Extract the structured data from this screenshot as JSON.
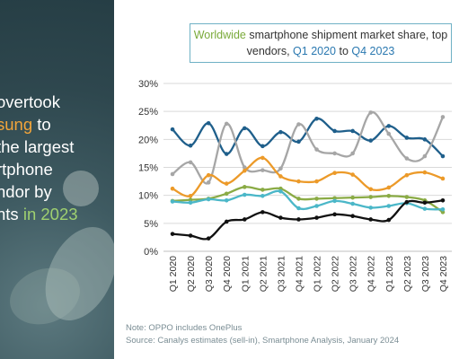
{
  "headline": {
    "lines": [
      {
        "pre": "overtook",
        "highlight": "",
        "post": ""
      },
      {
        "pre": "",
        "highlight": "sung",
        "post": " to"
      },
      {
        "pre": "the largest",
        "highlight": "",
        "post": ""
      },
      {
        "pre": "rtphone",
        "highlight": "",
        "post": ""
      },
      {
        "pre": "ndor by",
        "highlight": "",
        "post": ""
      },
      {
        "pre": "nts",
        "highlight": " in 2023",
        "post": ""
      }
    ]
  },
  "title": {
    "part1": "Worldwide",
    "part2": " smartphone shipment market share, top vendors, ",
    "part3": "Q1 2020",
    "part4": " to ",
    "part5": "Q4 2023"
  },
  "footnote": {
    "note": "Note: OPPO includes OnePlus",
    "source": "Source: Canalys estimates (sell-in), Smartphone Analysis, January 2024"
  },
  "colors": {
    "blue": "#1f5f8b",
    "gray": "#a6a6a6",
    "orange": "#ec9a29",
    "green": "#8aab45",
    "teal": "#4bb7c8",
    "black": "#111111",
    "grid": "#d9d9d9"
  },
  "chart_data": {
    "type": "line",
    "title": "Worldwide smartphone shipment market share, top vendors, Q1 2020 to Q4 2023",
    "xlabel": "",
    "ylabel": "",
    "ylim": [
      0,
      30
    ],
    "yticks": [
      "0%",
      "5%",
      "10%",
      "15%",
      "20%",
      "25%",
      "30%"
    ],
    "grid": true,
    "categories": [
      "Q1 2020",
      "Q2 2020",
      "Q3 2020",
      "Q4 2020",
      "Q1 2021",
      "Q2 2021",
      "Q3 2021",
      "Q4 2021",
      "Q1 2022",
      "Q2 2022",
      "Q3 2022",
      "Q4 2022",
      "Q1 2023",
      "Q2 2023",
      "Q3 2023",
      "Q4 2023"
    ],
    "series": [
      {
        "color": "#1f5f8b",
        "values": [
          21.8,
          18.9,
          22.9,
          17.4,
          22.0,
          18.8,
          21.3,
          19.6,
          23.7,
          21.5,
          21.5,
          19.8,
          22.4,
          20.3,
          20.0,
          17.0
        ]
      },
      {
        "color": "#a6a6a6",
        "values": [
          13.8,
          15.9,
          12.3,
          22.8,
          15.0,
          14.5,
          14.8,
          22.7,
          18.2,
          17.5,
          17.5,
          24.8,
          21.0,
          16.6,
          17.0,
          24.0
        ]
      },
      {
        "color": "#ec9a29",
        "values": [
          11.2,
          9.9,
          13.6,
          12.1,
          14.4,
          16.7,
          13.4,
          12.5,
          12.5,
          14.0,
          13.7,
          11.1,
          11.4,
          13.6,
          14.1,
          13.0
        ]
      },
      {
        "color": "#8aab45",
        "values": [
          9.0,
          9.2,
          9.4,
          10.3,
          11.5,
          11.0,
          11.2,
          9.4,
          9.4,
          9.5,
          9.6,
          9.7,
          9.9,
          9.7,
          9.1,
          7.0
        ]
      },
      {
        "color": "#4bb7c8",
        "values": [
          8.9,
          8.7,
          9.3,
          9.1,
          10.1,
          9.9,
          10.7,
          7.7,
          8.1,
          9.0,
          8.5,
          7.8,
          8.1,
          8.6,
          7.6,
          7.5
        ]
      },
      {
        "color": "#111111",
        "values": [
          3.1,
          2.8,
          2.3,
          5.3,
          5.7,
          7.0,
          6.0,
          5.7,
          6.0,
          6.6,
          6.3,
          5.7,
          5.6,
          8.8,
          8.7,
          9.1
        ]
      }
    ]
  }
}
